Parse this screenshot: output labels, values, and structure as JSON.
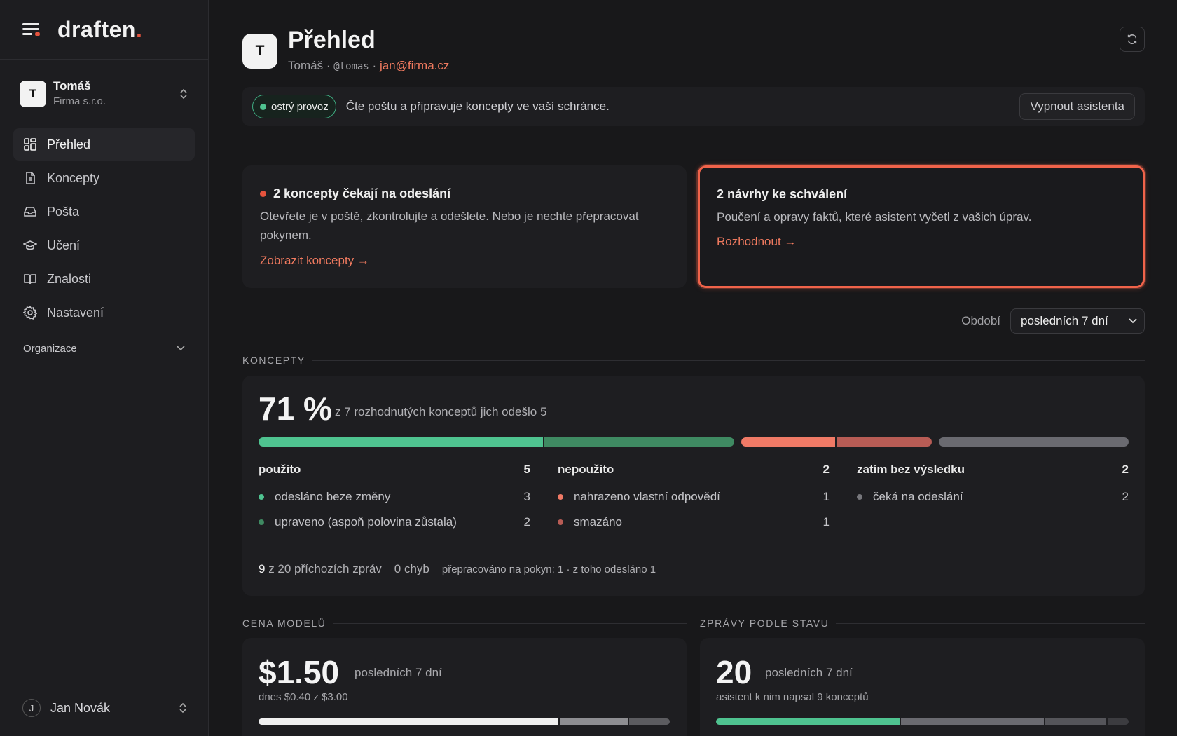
{
  "brand": {
    "name": "draften",
    "dot": "."
  },
  "account": {
    "initial": "T",
    "name": "Tomáš",
    "org": "Firma s.r.o."
  },
  "nav": [
    {
      "label": "Přehled",
      "icon": "dashboard-icon",
      "active": true
    },
    {
      "label": "Koncepty",
      "icon": "document-icon"
    },
    {
      "label": "Pošta",
      "icon": "inbox-icon"
    },
    {
      "label": "Učení",
      "icon": "graduation-cap-icon"
    },
    {
      "label": "Znalosti",
      "icon": "book-icon"
    },
    {
      "label": "Nastavení",
      "icon": "gear-icon"
    }
  ],
  "organizace": "Organizace",
  "user": {
    "initial": "J",
    "name": "Jan Novák"
  },
  "header": {
    "initial": "T",
    "title": "Přehled",
    "name": "Tomáš",
    "sep": "·",
    "handle": "@tomas",
    "email": "jan@firma.cz"
  },
  "status": {
    "pill": "ostrý provoz",
    "text": "Čte poštu a připravuje koncepty ve vaší schránce.",
    "button": "Vypnout asistenta"
  },
  "card_drafts": {
    "title": "2 koncepty čekají na odeslání",
    "text": "Otevřete je v poště, zkontrolujte a odešlete. Nebo je nechte přepracovat pokynem.",
    "link": "Zobrazit koncepty →"
  },
  "card_approvals": {
    "title": "2 návrhy ke schválení",
    "text": "Poučení a opravy faktů, které asistent vyčetl z vašich úprav.",
    "link": "Rozhodnout →"
  },
  "period": {
    "label": "Období",
    "value": "posledních 7 dní"
  },
  "sections": {
    "koncepty": "KONCEPTY",
    "cena": "CENA MODELŮ",
    "zpravy": "ZPRÁVY PODLE STAVU"
  },
  "koncepty": {
    "percent": "71 %",
    "subtitle": "z 7 rozhodnutých konceptů jich odešlo 5",
    "groups": [
      {
        "label": "použito",
        "count": "5",
        "rows": [
          {
            "label": "odesláno beze změny",
            "count": "3",
            "color": "#4fc390"
          },
          {
            "label": "upraveno (aspoň polovina zůstala)",
            "count": "2",
            "color": "#3f8a62"
          }
        ]
      },
      {
        "label": "nepoužito",
        "count": "2",
        "rows": [
          {
            "label": "nahrazeno vlastní odpovědí",
            "count": "1",
            "color": "#f07a66"
          },
          {
            "label": "smazáno",
            "count": "1",
            "color": "#b85c55"
          }
        ]
      },
      {
        "label": "zatím bez výsledku",
        "count": "2",
        "rows": [
          {
            "label": "čeká na odeslání",
            "count": "2",
            "color": "#77777c"
          }
        ]
      }
    ],
    "footer": {
      "received_count": "9",
      "received_text": "z 20 příchozích zpráv",
      "errors": "0 chyb",
      "reworked": "přepracováno na pokyn: 1 · z toho odesláno 1"
    }
  },
  "cost": {
    "value": "$1.50",
    "period": "posledních 7 dní",
    "today": "dnes $0.40 z $3.00"
  },
  "messages": {
    "value": "20",
    "period": "posledních 7 dní",
    "note": "asistent k nim napsal 9 konceptů"
  }
}
